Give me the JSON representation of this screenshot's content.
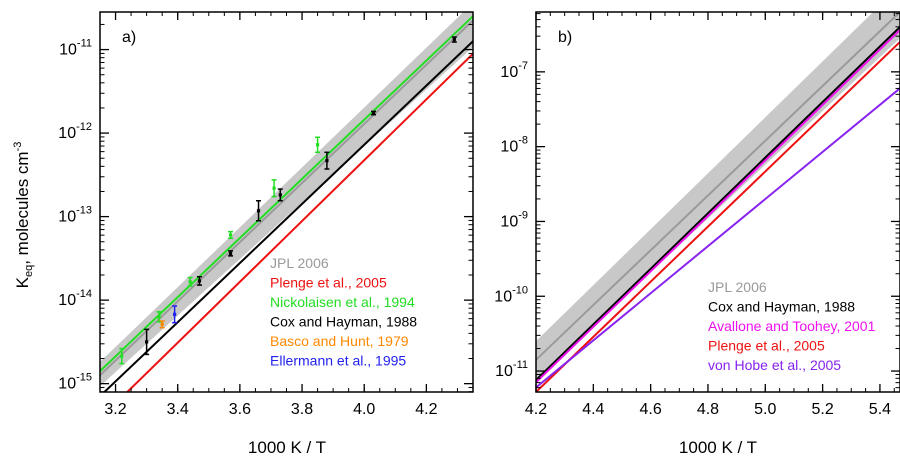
{
  "figure": {
    "ylabel_main": "K",
    "ylabel_sub": "eq",
    "ylabel_rest": ", molecules cm",
    "ylabel_sup": "-3"
  },
  "chart_data": [
    {
      "type": "line",
      "panel_label": "a)",
      "xlabel": "1000 K / T",
      "ylabel": "Keq, molecules cm-3",
      "xlim": [
        3.15,
        4.35
      ],
      "ylim_log10": [
        -15.1,
        -10.55
      ],
      "xscale": "linear",
      "yscale": "log",
      "xticks": [
        3.2,
        3.4,
        3.6,
        3.8,
        4.0,
        4.2
      ],
      "xtick_labels": [
        "3.2",
        "3.4",
        "3.6",
        "3.8",
        "4.0",
        "4.2"
      ],
      "yticks_log10": [
        -15,
        -14,
        -13,
        -12,
        -11
      ],
      "ytick_labels": [
        [
          "10",
          "-15"
        ],
        [
          "10",
          "-14"
        ],
        [
          "10",
          "-13"
        ],
        [
          "10",
          "-12"
        ],
        [
          "10",
          "-11"
        ]
      ],
      "legend_position": "bottom-right",
      "band": {
        "name": "JPL 2006",
        "color": "#c8c8c8",
        "x": [
          3.15,
          4.35
        ],
        "upper_log10": [
          -14.74,
          -10.44
        ],
        "lower_log10": [
          -15.03,
          -10.97
        ]
      },
      "series": [
        {
          "name": "JPL 2006",
          "color": "#9a9a9a",
          "x": [
            3.15,
            4.35
          ],
          "y_log10": [
            -14.9,
            -10.65
          ]
        },
        {
          "name": "Plenge et al., 2005",
          "color": "#ee1111",
          "x": [
            3.15,
            4.35
          ],
          "y_log10": [
            -15.42,
            -11.05
          ]
        },
        {
          "name": "Nickolaisen et al., 1994",
          "color": "#22dd22",
          "x": [
            3.15,
            4.35
          ],
          "y_log10": [
            -14.85,
            -10.6
          ]
        },
        {
          "name": "Cox and Hayman, 1988",
          "color": "#000000",
          "x": [
            3.15,
            4.35
          ],
          "y_log10": [
            -15.15,
            -10.9
          ]
        },
        {
          "name": "Basco and Hunt, 1979",
          "color": "#ff8800",
          "x": [],
          "y_log10": []
        },
        {
          "name": "Ellermann et al., 1995",
          "color": "#2222ee",
          "x": [],
          "y_log10": []
        }
      ],
      "points": [
        {
          "series": "Nickolaisen et al., 1994",
          "color": "#22dd22",
          "x": 3.22,
          "y_log10": -14.67,
          "err_log10": 0.09
        },
        {
          "series": "Nickolaisen et al., 1994",
          "color": "#22dd22",
          "x": 3.34,
          "y_log10": -14.2,
          "err_log10": 0.06
        },
        {
          "series": "Nickolaisen et al., 1994",
          "color": "#22dd22",
          "x": 3.44,
          "y_log10": -13.78,
          "err_log10": 0.05
        },
        {
          "series": "Nickolaisen et al., 1994",
          "color": "#22dd22",
          "x": 3.57,
          "y_log10": -13.22,
          "err_log10": 0.04
        },
        {
          "series": "Nickolaisen et al., 1994",
          "color": "#22dd22",
          "x": 3.71,
          "y_log10": -12.66,
          "err_log10": 0.1
        },
        {
          "series": "Nickolaisen et al., 1994",
          "color": "#22dd22",
          "x": 3.85,
          "y_log10": -12.14,
          "err_log10": 0.09
        },
        {
          "series": "Cox and Hayman, 1988",
          "color": "#000000",
          "x": 3.3,
          "y_log10": -14.5,
          "err_log10": 0.15
        },
        {
          "series": "Cox and Hayman, 1988",
          "color": "#000000",
          "x": 3.47,
          "y_log10": -13.77,
          "err_log10": 0.05
        },
        {
          "series": "Cox and Hayman, 1988",
          "color": "#000000",
          "x": 3.57,
          "y_log10": -13.44,
          "err_log10": 0.03
        },
        {
          "series": "Cox and Hayman, 1988",
          "color": "#000000",
          "x": 3.66,
          "y_log10": -12.93,
          "err_log10": 0.12
        },
        {
          "series": "Cox and Hayman, 1988",
          "color": "#000000",
          "x": 3.73,
          "y_log10": -12.74,
          "err_log10": 0.07
        },
        {
          "series": "Cox and Hayman, 1988",
          "color": "#000000",
          "x": 3.88,
          "y_log10": -12.33,
          "err_log10": 0.1
        },
        {
          "series": "Cox and Hayman, 1988",
          "color": "#000000",
          "x": 4.03,
          "y_log10": -11.76,
          "err_log10": 0.02
        },
        {
          "series": "Cox and Hayman, 1988",
          "color": "#000000",
          "x": 4.29,
          "y_log10": -10.88,
          "err_log10": 0.03
        },
        {
          "series": "Basco and Hunt, 1979",
          "color": "#ff8800",
          "x": 3.35,
          "y_log10": -14.29,
          "err_log10": 0.04
        },
        {
          "series": "Ellermann et al., 1995",
          "color": "#2222ee",
          "x": 3.39,
          "y_log10": -14.17,
          "err_log10": 0.1
        }
      ]
    },
    {
      "type": "line",
      "panel_label": "b)",
      "xlabel": "1000 K / T",
      "ylabel": "",
      "xlim": [
        4.2,
        5.47
      ],
      "ylim_log10": [
        -11.28,
        -6.2
      ],
      "xscale": "linear",
      "yscale": "log",
      "xticks": [
        4.2,
        4.4,
        4.6,
        4.8,
        5.0,
        5.2,
        5.4
      ],
      "xtick_labels": [
        "4.2",
        "4.4",
        "4.6",
        "4.8",
        "5.0",
        "5.2",
        "5.4"
      ],
      "yticks_log10": [
        -11,
        -10,
        -9,
        -8,
        -7
      ],
      "ytick_labels": [
        [
          "10",
          "-11"
        ],
        [
          "10",
          "-10"
        ],
        [
          "10",
          "-9"
        ],
        [
          "10",
          "-8"
        ],
        [
          "10",
          "-7"
        ]
      ],
      "legend_position": "bottom-right",
      "band": {
        "name": "JPL 2006",
        "color": "#c8c8c8",
        "x": [
          4.2,
          5.47
        ],
        "upper_log10": [
          -10.6,
          -5.85
        ],
        "lower_log10": [
          -11.12,
          -6.55
        ]
      },
      "series": [
        {
          "name": "JPL 2006",
          "color": "#9a9a9a",
          "x": [
            4.2,
            5.47
          ],
          "y_log10": [
            -10.85,
            -6.2
          ]
        },
        {
          "name": "Cox and Hayman, 1988",
          "color": "#000000",
          "x": [
            4.2,
            5.47
          ],
          "y_log10": [
            -11.12,
            -6.4
          ]
        },
        {
          "name": "Avallone and Toohey, 2001",
          "color": "#ee11ee",
          "x": [
            4.2,
            5.47
          ],
          "y_log10": [
            -11.15,
            -6.44
          ]
        },
        {
          "name": "Plenge et al., 2005",
          "color": "#ee1111",
          "x": [
            4.2,
            5.47
          ],
          "y_log10": [
            -11.28,
            -6.6
          ]
        },
        {
          "name": "von Hobe et al., 2005",
          "color": "#8822ee",
          "x": [
            4.2,
            5.47
          ],
          "y_log10": [
            -11.22,
            -7.22
          ]
        }
      ],
      "points": []
    }
  ]
}
